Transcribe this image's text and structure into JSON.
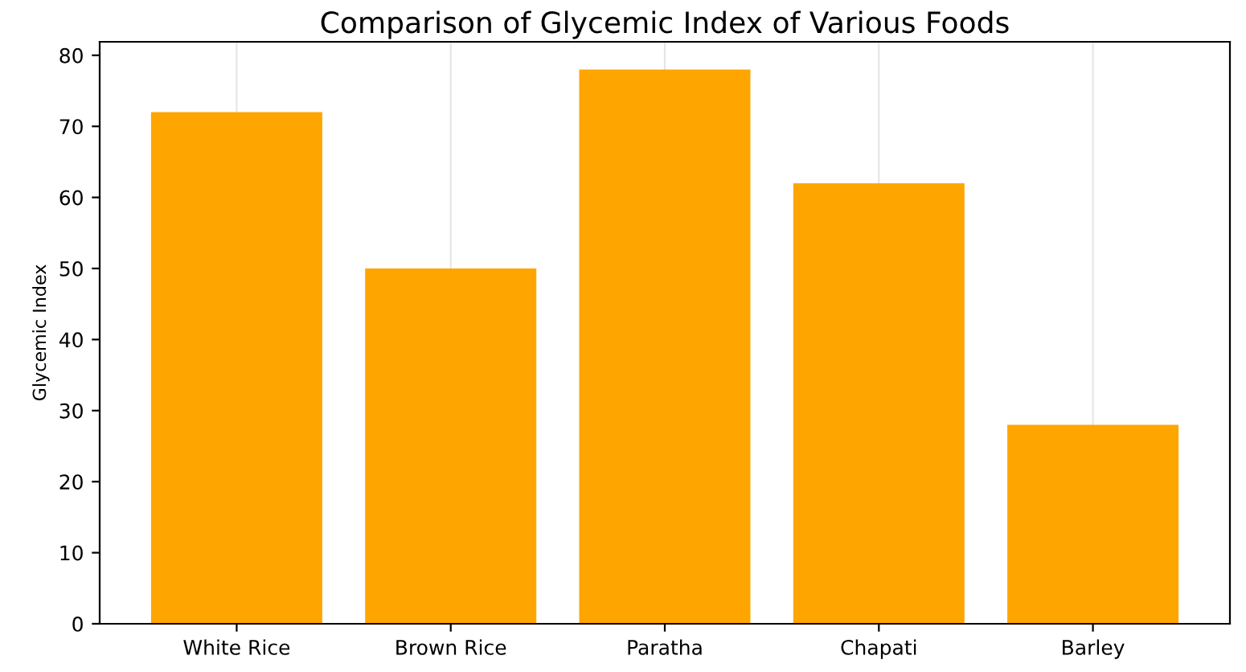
{
  "chart_data": {
    "type": "bar",
    "title": "Comparison of Glycemic Index of Various Foods",
    "ylabel": "Glycemic Index",
    "categories": [
      "White Rice",
      "Brown Rice",
      "Paratha",
      "Chapati",
      "Barley"
    ],
    "values": [
      72,
      50,
      78,
      62,
      28
    ],
    "color": "#ffa500",
    "ylim": [
      0,
      81.9
    ],
    "yticks": [
      0,
      10,
      20,
      30,
      40,
      50,
      60,
      70,
      80
    ],
    "grid": "x"
  }
}
